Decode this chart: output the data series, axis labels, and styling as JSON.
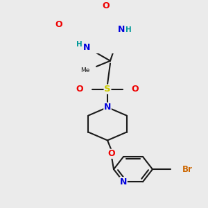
{
  "bg_color": "#ebebeb",
  "bond_color": "#1a1a1a",
  "bond_lw": 1.5,
  "dbo": 0.008,
  "colors": {
    "N": "#0000dd",
    "O": "#ee0000",
    "S": "#cccc00",
    "Br": "#cc6600",
    "H": "#009999",
    "C": "#1a1a1a"
  },
  "scale": 1.0
}
